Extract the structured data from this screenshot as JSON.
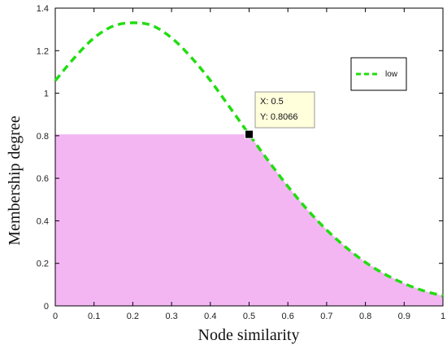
{
  "chart_data": {
    "type": "line",
    "title": "",
    "xlabel": "Node similarity",
    "ylabel": "Membership degree",
    "xlim": [
      0,
      1
    ],
    "ylim": [
      0,
      1.4
    ],
    "xticks": [
      0,
      0.1,
      0.2,
      0.3,
      0.4,
      0.5,
      0.6,
      0.7,
      0.8,
      0.9,
      1
    ],
    "xtick_labels": [
      "0",
      "0.1",
      "0.2",
      "0.3",
      "0.4",
      "0.5",
      "0.6",
      "0.7",
      "0.8",
      "0.9",
      "1"
    ],
    "yticks": [
      0,
      0.2,
      0.4,
      0.6,
      0.8,
      1,
      1.2,
      1.4
    ],
    "ytick_labels": [
      "0",
      "0.2",
      "0.4",
      "0.6",
      "0.8",
      "1",
      "1.2",
      "1.4"
    ],
    "grid": false,
    "legend_position": "top-right",
    "series": [
      {
        "name": "low",
        "color": "#22dd11",
        "style": "dashed",
        "x": [
          0,
          0.05,
          0.1,
          0.15,
          0.2,
          0.25,
          0.3,
          0.35,
          0.4,
          0.45,
          0.5,
          0.55,
          0.6,
          0.65,
          0.7,
          0.75,
          0.8,
          0.85,
          0.9,
          0.95,
          1
        ],
        "y": [
          1.059,
          1.168,
          1.26,
          1.316,
          1.331,
          1.318,
          1.26,
          1.17,
          1.06,
          0.934,
          0.8066,
          0.681,
          0.562,
          0.453,
          0.357,
          0.275,
          0.205,
          0.149,
          0.105,
          0.071,
          0.047
        ]
      }
    ],
    "shaded_region": {
      "color": "#f3b6f3",
      "x_range": [
        0,
        0.5
      ],
      "y_level": 0.8066,
      "curve_fill_from_x": 0.5
    },
    "marker": {
      "x": 0.5,
      "y": 0.8066,
      "color": "#000000"
    },
    "datatip": {
      "x_text": "X: 0.5",
      "y_text": "Y: 0.8066"
    }
  }
}
